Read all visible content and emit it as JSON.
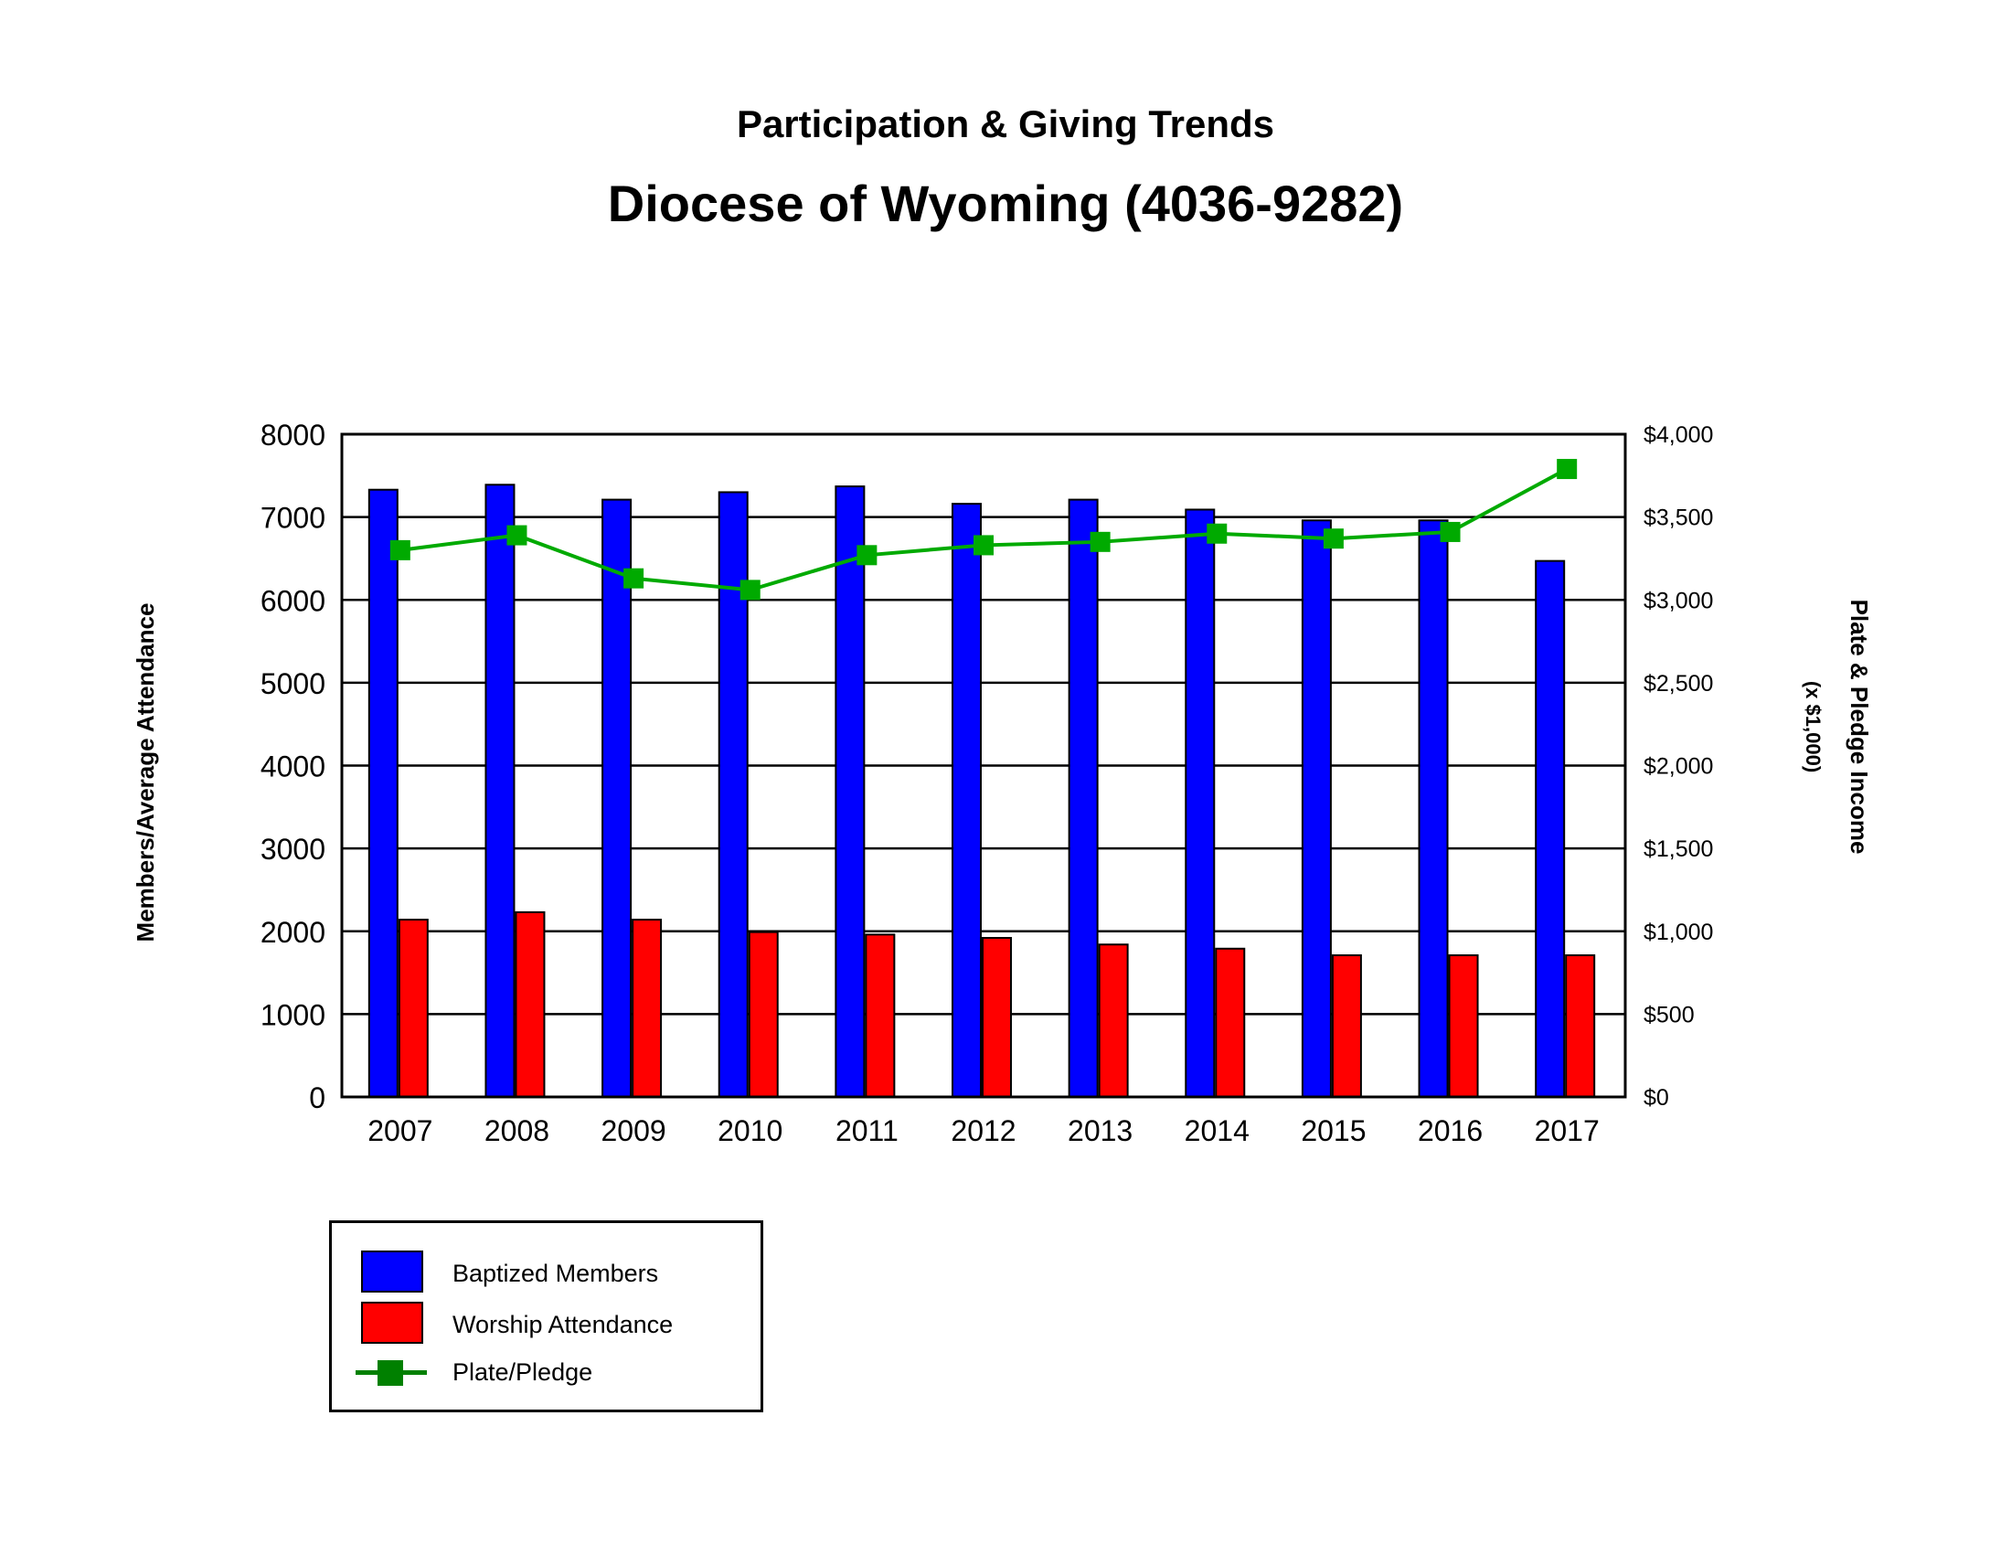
{
  "header": {
    "subtitle": "Participation & Giving Trends",
    "title": "Diocese of Wyoming (4036-9282)"
  },
  "chart_data": {
    "type": "bar",
    "title": "Diocese of Wyoming (4036-9282)",
    "subtitle": "Participation & Giving Trends",
    "categories": [
      "2007",
      "2008",
      "2009",
      "2010",
      "2011",
      "2012",
      "2013",
      "2014",
      "2015",
      "2016",
      "2017"
    ],
    "ylabel_left": "Members/Average Attendance",
    "ylabel_right": "Plate & Pledge Income",
    "ylabel_right_unit": "(x $1,000)",
    "ylim_left": [
      0,
      8000
    ],
    "ylim_right": [
      0,
      4000
    ],
    "yticks_left": [
      "0",
      "1000",
      "2000",
      "3000",
      "4000",
      "5000",
      "6000",
      "7000",
      "8000"
    ],
    "yticks_right": [
      "$0",
      "$500",
      "$1,000",
      "$1,500",
      "$2,000",
      "$2,500",
      "$3,000",
      "$3,500",
      "$4,000"
    ],
    "grid": true,
    "legend_position": "bottom-left",
    "series": [
      {
        "name": "Baptized Members",
        "type": "bar",
        "axis": "left",
        "color": "#0000ff",
        "values": [
          7330,
          7390,
          7210,
          7300,
          7370,
          7160,
          7210,
          7090,
          6960,
          6960,
          6470
        ]
      },
      {
        "name": "Worship Attendance",
        "type": "bar",
        "axis": "left",
        "color": "#ff0000",
        "values": [
          2140,
          2230,
          2140,
          1990,
          1960,
          1920,
          1840,
          1790,
          1710,
          1710,
          1710
        ]
      },
      {
        "name": "Plate/Pledge",
        "type": "line",
        "axis": "right",
        "color": "#00aa00",
        "marker": "square",
        "values": [
          3300,
          3390,
          3130,
          3060,
          3270,
          3330,
          3350,
          3400,
          3370,
          3410,
          3790
        ]
      }
    ]
  },
  "legend": {
    "items": [
      {
        "label": "Baptized Members",
        "color": "#0000ff",
        "kind": "swatch"
      },
      {
        "label": "Worship Attendance",
        "color": "#ff0000",
        "kind": "swatch"
      },
      {
        "label": "Plate/Pledge",
        "color": "#008000",
        "kind": "line-marker"
      }
    ]
  }
}
